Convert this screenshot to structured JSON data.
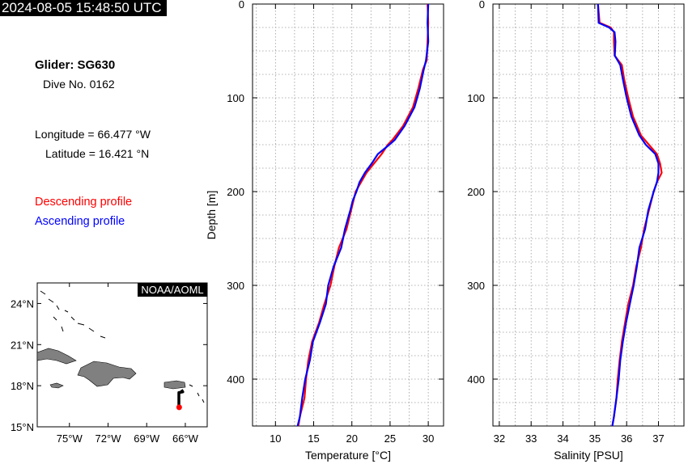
{
  "header": {
    "timestamp": "2024-08-05 15:48:50 UTC"
  },
  "info": {
    "glider": "Glider: SG630",
    "dive": "Dive No. 0162",
    "longitude": "Longitude = 66.477 °W",
    "latitude": "Latitude = 16.421 °N",
    "descending_label": "Descending profile",
    "ascending_label": "Ascending profile"
  },
  "colors": {
    "descending": "#ff0000",
    "ascending": "#0000ff",
    "land": "#808080"
  },
  "map": {
    "credit": "NOAA/AOML",
    "lon_ticks": [
      -75,
      -72,
      -69,
      -66
    ],
    "lon_tick_labels": [
      "75°W",
      "72°W",
      "69°W",
      "66°W"
    ],
    "lat_ticks": [
      15,
      18,
      21,
      24
    ],
    "lat_tick_labels": [
      "15°N",
      "18°N",
      "21°N",
      "24°N"
    ],
    "xlim": [
      -77.5,
      -64.3
    ],
    "ylim": [
      15,
      25.5
    ],
    "track": [
      [
        -66.3,
        17.7
      ],
      [
        -66.2,
        17.55
      ],
      [
        -66.5,
        17.5
      ],
      [
        -66.5,
        16.6
      ],
      [
        -66.477,
        16.421
      ]
    ],
    "position": [
      -66.477,
      16.421
    ]
  },
  "chart_data": [
    {
      "type": "line",
      "title": "",
      "xlabel": "Temperature [°C]",
      "ylabel": "Depth [m]",
      "xlim": [
        7,
        32
      ],
      "ylim": [
        450,
        0
      ],
      "x_ticks": [
        10,
        15,
        20,
        25,
        30
      ],
      "y_ticks": [
        0,
        100,
        200,
        300,
        400
      ],
      "grid": true,
      "series": [
        {
          "name": "Descending profile",
          "depth": [
            0,
            20,
            40,
            60,
            70,
            90,
            110,
            130,
            145,
            150,
            160,
            170,
            180,
            190,
            200,
            210,
            220,
            240,
            260,
            280,
            300,
            320,
            340,
            360,
            380,
            400,
            420,
            440,
            450
          ],
          "values": [
            29.9,
            30.0,
            29.9,
            29.8,
            29.3,
            28.7,
            28.0,
            26.7,
            25.3,
            24.7,
            23.9,
            22.9,
            21.9,
            21.2,
            20.5,
            20.2,
            19.9,
            19.3,
            18.3,
            17.7,
            17.2,
            16.4,
            15.7,
            14.8,
            14.3,
            14.0,
            13.8,
            13.2,
            13.0
          ]
        },
        {
          "name": "Ascending profile",
          "depth": [
            0,
            20,
            40,
            60,
            70,
            90,
            110,
            130,
            145,
            150,
            160,
            170,
            180,
            190,
            200,
            210,
            220,
            240,
            260,
            280,
            300,
            320,
            340,
            360,
            380,
            400,
            420,
            440,
            450
          ],
          "values": [
            30.0,
            29.9,
            30.0,
            29.7,
            29.4,
            28.9,
            28.2,
            26.9,
            25.6,
            24.9,
            23.4,
            22.6,
            21.7,
            21.0,
            20.6,
            20.1,
            19.8,
            19.1,
            18.6,
            17.6,
            16.9,
            16.6,
            15.8,
            14.9,
            14.5,
            13.9,
            13.5,
            13.2,
            12.9
          ]
        }
      ]
    },
    {
      "type": "line",
      "title": "",
      "xlabel": "Salinity [PSU]",
      "ylabel": "",
      "xlim": [
        31.8,
        37.8
      ],
      "ylim": [
        450,
        0
      ],
      "x_ticks": [
        32,
        33,
        34,
        35,
        36,
        37
      ],
      "y_ticks": [
        0,
        100,
        200,
        300,
        400
      ],
      "grid": true,
      "series": [
        {
          "name": "Descending profile",
          "depth": [
            0,
            20,
            25,
            30,
            40,
            55,
            65,
            80,
            100,
            120,
            140,
            150,
            160,
            170,
            180,
            190,
            200,
            220,
            240,
            260,
            280,
            300,
            320,
            340,
            360,
            380,
            400,
            420,
            440,
            450
          ],
          "values": [
            35.1,
            35.15,
            35.5,
            35.6,
            35.6,
            35.62,
            35.85,
            35.92,
            36.05,
            36.2,
            36.45,
            36.7,
            36.95,
            37.05,
            37.1,
            36.95,
            36.85,
            36.7,
            36.55,
            36.45,
            36.3,
            36.2,
            36.05,
            35.95,
            35.85,
            35.78,
            35.72,
            35.68,
            35.6,
            35.55
          ]
        },
        {
          "name": "Ascending profile",
          "depth": [
            0,
            20,
            25,
            30,
            40,
            55,
            65,
            80,
            100,
            120,
            140,
            150,
            160,
            170,
            180,
            190,
            200,
            220,
            240,
            260,
            280,
            300,
            320,
            340,
            360,
            380,
            400,
            420,
            440,
            450
          ],
          "values": [
            35.1,
            35.12,
            35.45,
            35.62,
            35.65,
            35.63,
            35.8,
            35.88,
            36.0,
            36.15,
            36.4,
            36.6,
            36.9,
            37.0,
            37.0,
            36.95,
            36.85,
            36.68,
            36.58,
            36.4,
            36.32,
            36.22,
            36.1,
            35.98,
            35.88,
            35.8,
            35.75,
            35.68,
            35.6,
            35.55
          ]
        }
      ]
    }
  ]
}
